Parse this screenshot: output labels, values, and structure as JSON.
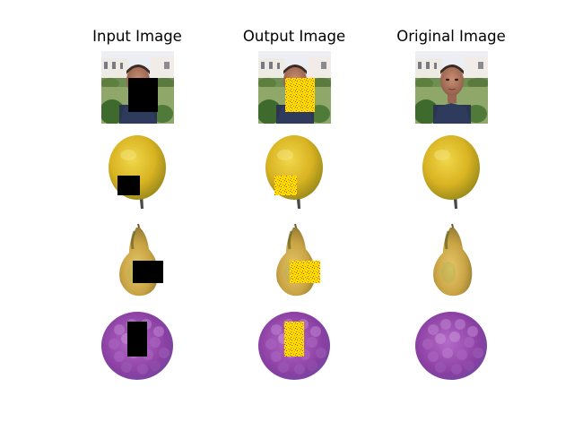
{
  "figure": {
    "column_titles": [
      "Input Image",
      "Output Image",
      "Original Image"
    ],
    "rows": [
      "face",
      "lemon",
      "pear",
      "raspberry"
    ],
    "mask_colors": {
      "input": "#000000",
      "output_base": "#ffe100",
      "output_noise": "#e23c00"
    }
  }
}
